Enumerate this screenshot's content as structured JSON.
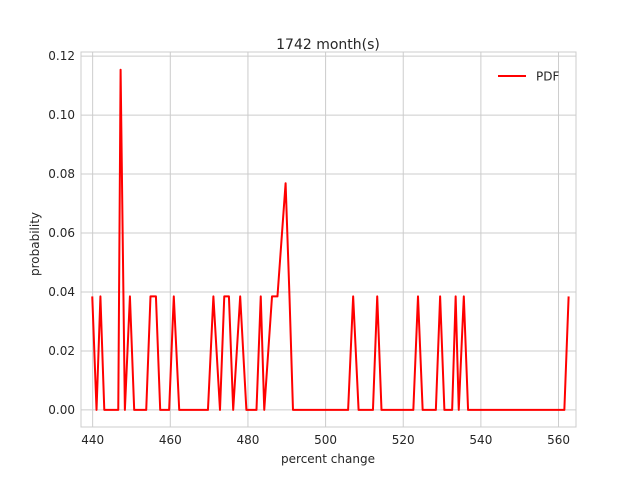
{
  "chart_data": {
    "type": "line",
    "title": "1742 month(s)",
    "xlabel": "percent change",
    "ylabel": "probability",
    "xlim": [
      437,
      564.5
    ],
    "ylim": [
      -0.0058,
      0.1214
    ],
    "xticks": [
      440,
      460,
      480,
      500,
      520,
      540,
      560
    ],
    "yticks": [
      0.0,
      0.02,
      0.04,
      0.06,
      0.08,
      0.1,
      0.12
    ],
    "xtick_labels": [
      "440",
      "460",
      "480",
      "500",
      "520",
      "540",
      "560"
    ],
    "ytick_labels": [
      "0.00",
      "0.02",
      "0.04",
      "0.06",
      "0.08",
      "0.10",
      "0.12"
    ],
    "grid": true,
    "legend_position": "top-right",
    "series": [
      {
        "name": "PDF",
        "color": "#ff0000",
        "x": [
          439.9,
          441.0,
          442.0,
          443.0,
          444.2,
          445.6,
          446.6,
          447.2,
          448.3,
          449.6,
          450.7,
          452.4,
          453.8,
          454.9,
          456.3,
          457.4,
          459.7,
          460.9,
          462.3,
          465.2,
          467.8,
          469.7,
          471.1,
          472.8,
          473.9,
          475.1,
          476.2,
          478.0,
          479.6,
          482.2,
          483.3,
          484.2,
          486.2,
          487.6,
          489.7,
          490.7,
          491.6,
          493.5,
          500.0,
          505.8,
          507.1,
          508.5,
          512.2,
          513.3,
          514.4,
          522.6,
          523.8,
          525.0,
          528.4,
          529.5,
          530.6,
          532.6,
          533.5,
          534.3,
          535.6,
          536.7,
          540.0,
          550.0,
          561.5,
          562.6
        ],
        "y": [
          0.0385,
          0.0,
          0.0385,
          0.0,
          0.0,
          0.0,
          0.0,
          0.1154,
          0.0,
          0.0385,
          0.0,
          0.0,
          0.0,
          0.0385,
          0.0385,
          0.0,
          0.0,
          0.0385,
          0.0,
          0.0,
          0.0,
          0.0,
          0.0385,
          0.0,
          0.0385,
          0.0385,
          0.0,
          0.0385,
          0.0,
          0.0,
          0.0385,
          0.0,
          0.0385,
          0.0385,
          0.0769,
          0.0385,
          0.0,
          0.0,
          0.0,
          0.0,
          0.0385,
          0.0,
          0.0,
          0.0385,
          0.0,
          0.0,
          0.0385,
          0.0,
          0.0,
          0.0385,
          0.0,
          0.0,
          0.0385,
          0.0,
          0.0385,
          0.0,
          0.0,
          0.0,
          0.0,
          0.0385
        ]
      }
    ]
  }
}
